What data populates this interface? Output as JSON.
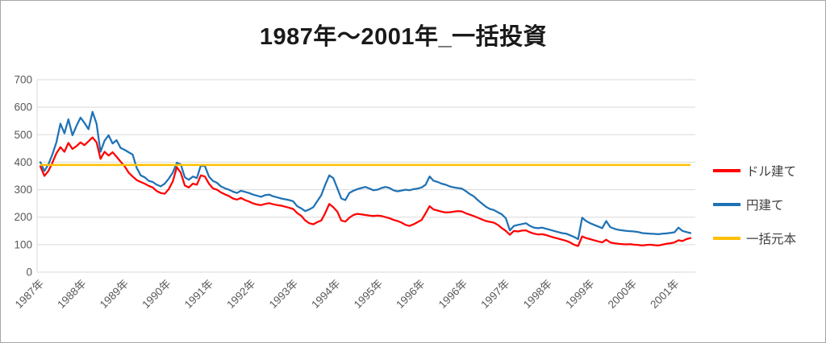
{
  "title": "1987年～2001年_一括投資",
  "colors": {
    "grid": "#d9d9d9",
    "axis_text": "#595959",
    "title_text": "#1a1a1a",
    "border": "#a6a6a6",
    "dollar_red": "#fe0000",
    "yen_blue": "#1f72b5",
    "principal_gold": "#ffc000"
  },
  "chart_data": {
    "type": "line",
    "title": "1987年～2001年_一括投資",
    "xlabel": "",
    "ylabel": "",
    "ylim": [
      0,
      700
    ],
    "grid": true,
    "legend_position": "right",
    "y_ticks": [
      0,
      100,
      200,
      300,
      400,
      500,
      600,
      700
    ],
    "x_tick_labels": [
      "1987年",
      "1988年",
      "1989年",
      "1990年",
      "1991年",
      "1992年",
      "1993年",
      "1994年",
      "1995年",
      "1996年",
      "1996年",
      "1997年",
      "1998年",
      "1999年",
      "2000年",
      "2001年"
    ],
    "series": [
      {
        "name": "ドル建て",
        "color": "#fe0000",
        "values": [
          385,
          350,
          368,
          398,
          432,
          455,
          438,
          470,
          448,
          458,
          472,
          462,
          476,
          490,
          472,
          412,
          438,
          424,
          436,
          420,
          402,
          385,
          362,
          348,
          335,
          328,
          322,
          314,
          308,
          295,
          288,
          285,
          302,
          330,
          382,
          362,
          315,
          308,
          322,
          318,
          352,
          348,
          322,
          305,
          300,
          290,
          283,
          277,
          268,
          264,
          270,
          262,
          257,
          250,
          246,
          244,
          248,
          251,
          247,
          244,
          242,
          238,
          234,
          230,
          215,
          205,
          188,
          178,
          174,
          182,
          188,
          215,
          248,
          236,
          220,
          188,
          184,
          198,
          208,
          212,
          210,
          208,
          206,
          204,
          206,
          204,
          200,
          196,
          190,
          186,
          180,
          172,
          168,
          174,
          182,
          190,
          214,
          240,
          228,
          224,
          220,
          217,
          218,
          220,
          222,
          221,
          214,
          209,
          204,
          198,
          192,
          186,
          183,
          180,
          172,
          160,
          150,
          136,
          150,
          148,
          151,
          152,
          145,
          140,
          137,
          138,
          135,
          130,
          126,
          122,
          118,
          114,
          108,
          100,
          95,
          130,
          124,
          120,
          116,
          112,
          108,
          118,
          108,
          105,
          103,
          102,
          101,
          102,
          100,
          99,
          97,
          99,
          100,
          98,
          97,
          100,
          103,
          105,
          108,
          116,
          113,
          120,
          124
        ]
      },
      {
        "name": "円建て",
        "color": "#1f72b5",
        "values": [
          400,
          368,
          392,
          428,
          472,
          540,
          505,
          556,
          498,
          532,
          562,
          543,
          520,
          583,
          540,
          438,
          478,
          498,
          468,
          480,
          452,
          445,
          436,
          428,
          380,
          352,
          345,
          332,
          328,
          318,
          312,
          322,
          340,
          362,
          398,
          392,
          345,
          336,
          348,
          342,
          388,
          386,
          348,
          332,
          325,
          312,
          305,
          300,
          293,
          288,
          296,
          292,
          288,
          282,
          278,
          274,
          280,
          282,
          276,
          272,
          268,
          265,
          262,
          258,
          240,
          232,
          222,
          228,
          236,
          258,
          280,
          318,
          352,
          342,
          305,
          268,
          262,
          288,
          296,
          302,
          306,
          310,
          304,
          298,
          300,
          306,
          310,
          306,
          298,
          294,
          297,
          300,
          298,
          302,
          304,
          308,
          318,
          348,
          332,
          328,
          322,
          318,
          312,
          308,
          306,
          304,
          295,
          284,
          276,
          262,
          250,
          238,
          230,
          226,
          218,
          210,
          196,
          152,
          168,
          172,
          175,
          178,
          168,
          162,
          160,
          162,
          158,
          154,
          150,
          146,
          142,
          140,
          134,
          128,
          120,
          198,
          186,
          178,
          172,
          166,
          160,
          186,
          164,
          158,
          154,
          152,
          150,
          149,
          148,
          146,
          142,
          141,
          140,
          139,
          138,
          140,
          141,
          143,
          145,
          162,
          150,
          146,
          142
        ]
      },
      {
        "name": "一括元本",
        "color": "#ffc000",
        "constant": 390
      }
    ]
  }
}
